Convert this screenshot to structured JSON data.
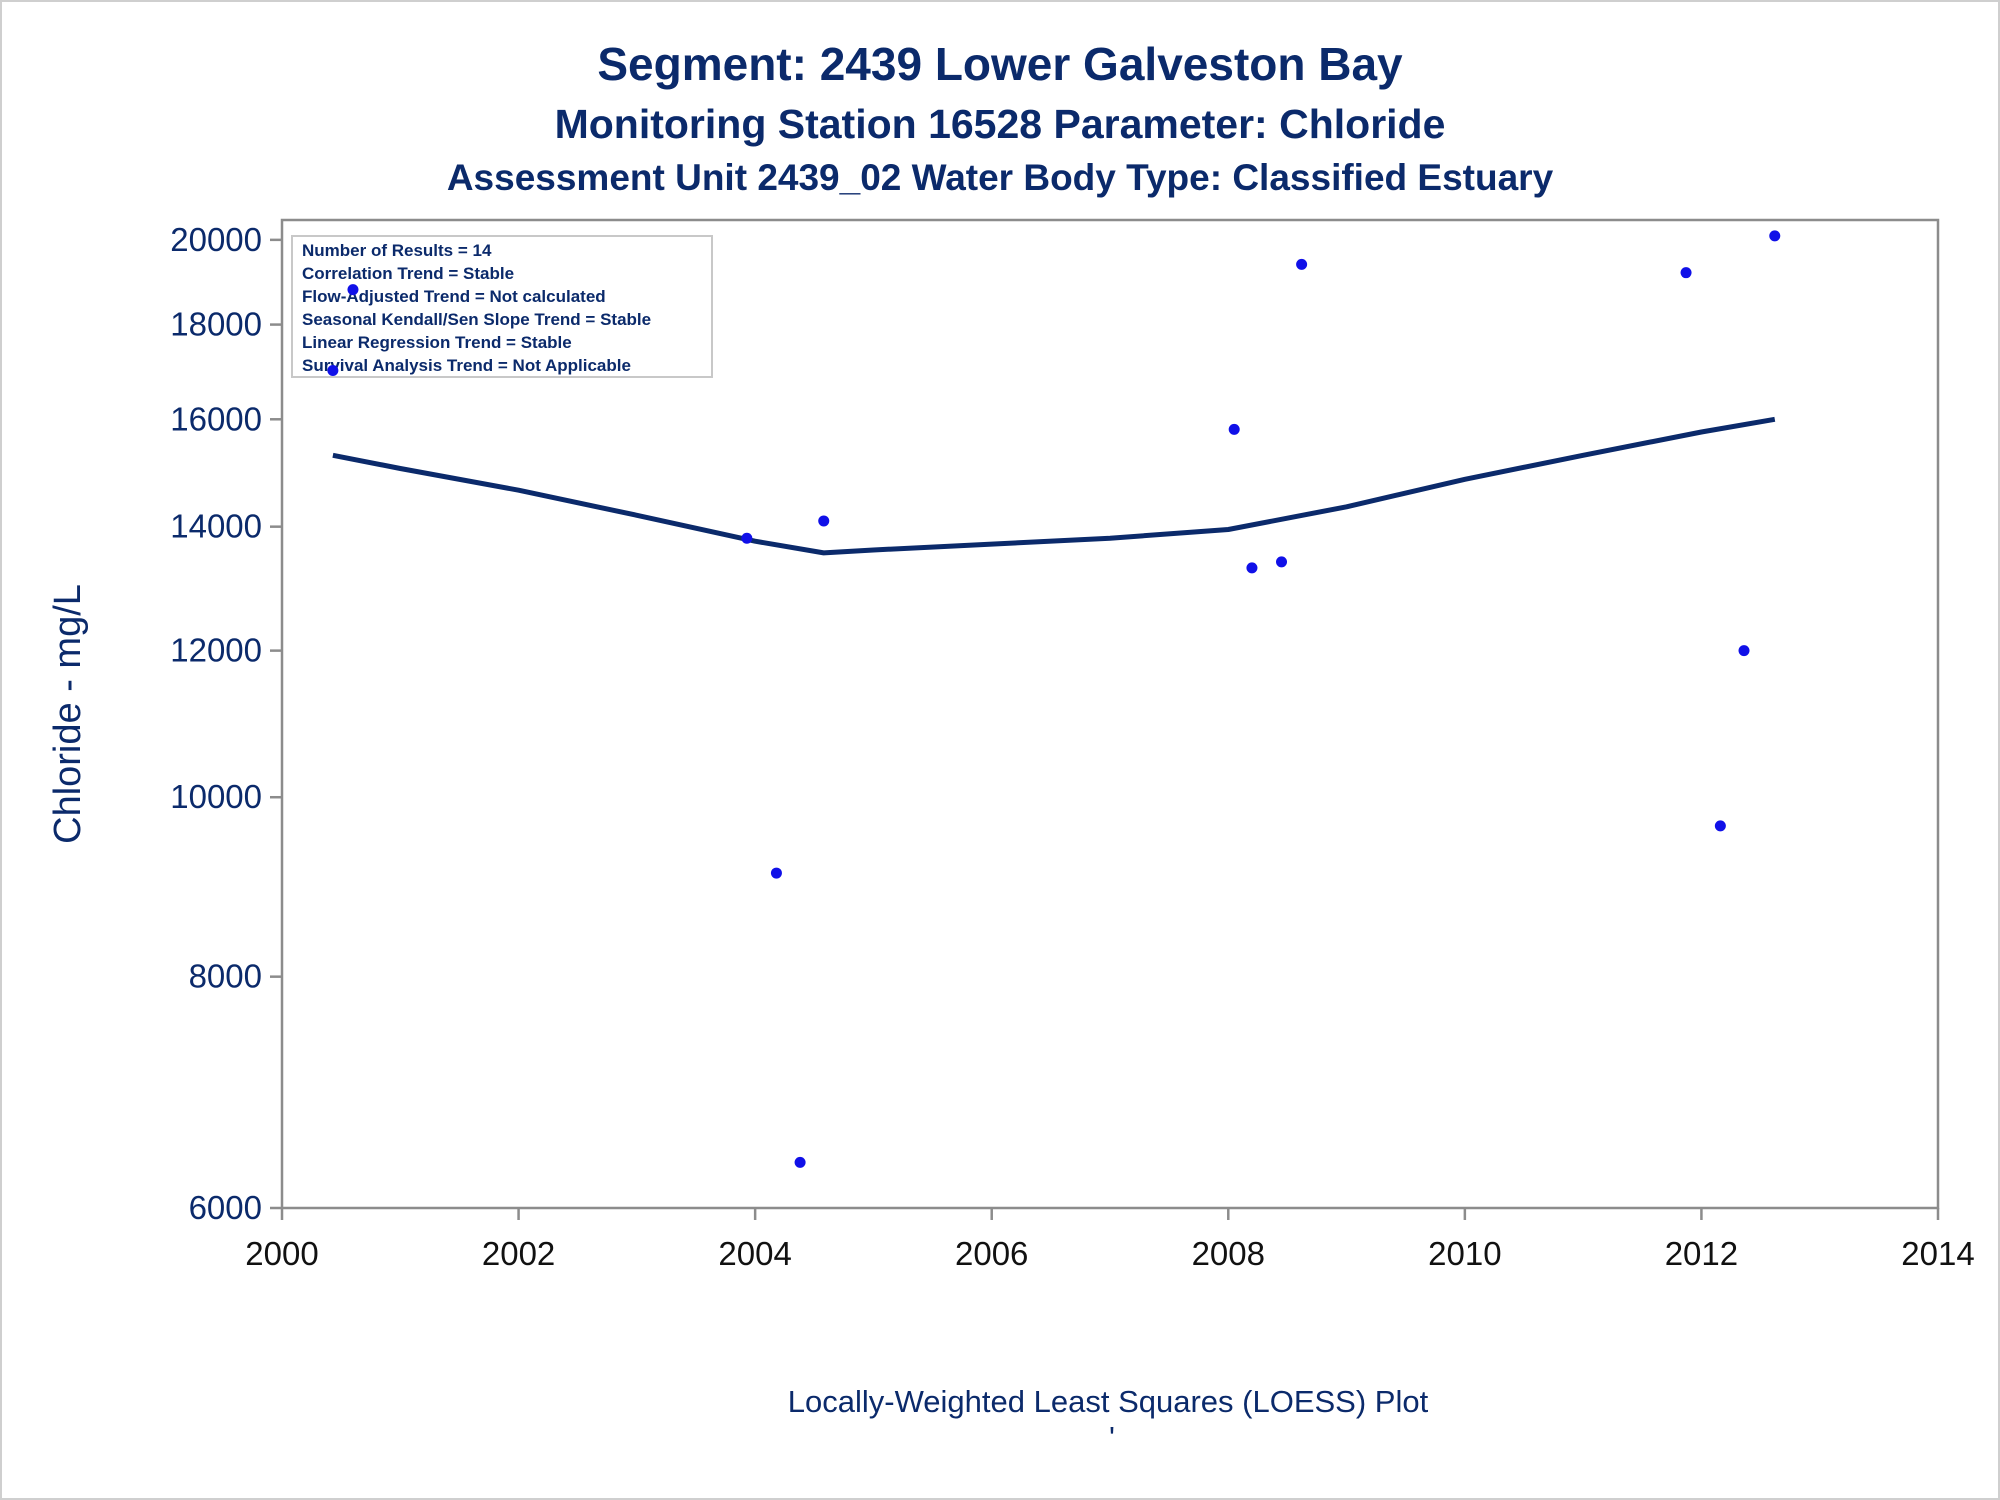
{
  "titles": {
    "line1": "Segment: 2439  Lower Galveston Bay",
    "line2": "Monitoring Station 16528 Parameter: Chloride",
    "line3": "Assessment Unit 2439_02   Water Body Type: Classified Estuary"
  },
  "footnote": "Locally-Weighted Least Squares (LOESS) Plot",
  "footnote_mark": "'",
  "inset": [
    "Number of Results = 14",
    "Correlation Trend = Stable",
    "Flow-Adjusted Trend = Not calculated",
    "Seasonal Kendall/Sen Slope Trend = Stable",
    "Linear Regression Trend = Stable",
    "Survival Analysis Trend = Not Applicable"
  ],
  "colors": {
    "text": "#0b2a6b",
    "points": "#1010e8",
    "loess": "#0b2a6b",
    "axis": "#8c8c8c"
  },
  "chart_data": {
    "type": "scatter",
    "ylabel": "Chloride - mg/L",
    "xlabel": "",
    "xlim": [
      2000,
      2014
    ],
    "ylim": [
      6000,
      20500
    ],
    "yscale": "log",
    "grid": false,
    "legend": "none",
    "xticks": [
      2000,
      2002,
      2004,
      2006,
      2008,
      2010,
      2012,
      2014
    ],
    "yticks": [
      6000,
      8000,
      10000,
      12000,
      14000,
      16000,
      18000,
      20000
    ],
    "series": [
      {
        "type": "scatter",
        "x": [
          2000.43,
          2000.6,
          2003.93,
          2004.18,
          2004.38,
          2004.58,
          2008.05,
          2008.2,
          2008.45,
          2008.62,
          2011.87,
          2012.16,
          2012.36,
          2012.62
        ],
        "y": [
          17000,
          18800,
          13800,
          9100,
          6350,
          14100,
          15800,
          13300,
          13400,
          19400,
          19200,
          9650,
          12000,
          20100
        ]
      },
      {
        "type": "line",
        "x": [
          2000.43,
          2001,
          2002,
          2003,
          2004,
          2004.58,
          2005,
          2006,
          2007,
          2008,
          2009,
          2010,
          2011,
          2012,
          2012.62
        ],
        "y": [
          15300,
          15050,
          14650,
          14200,
          13750,
          13550,
          13600,
          13700,
          13800,
          13950,
          14350,
          14850,
          15300,
          15750,
          16000
        ]
      }
    ]
  }
}
